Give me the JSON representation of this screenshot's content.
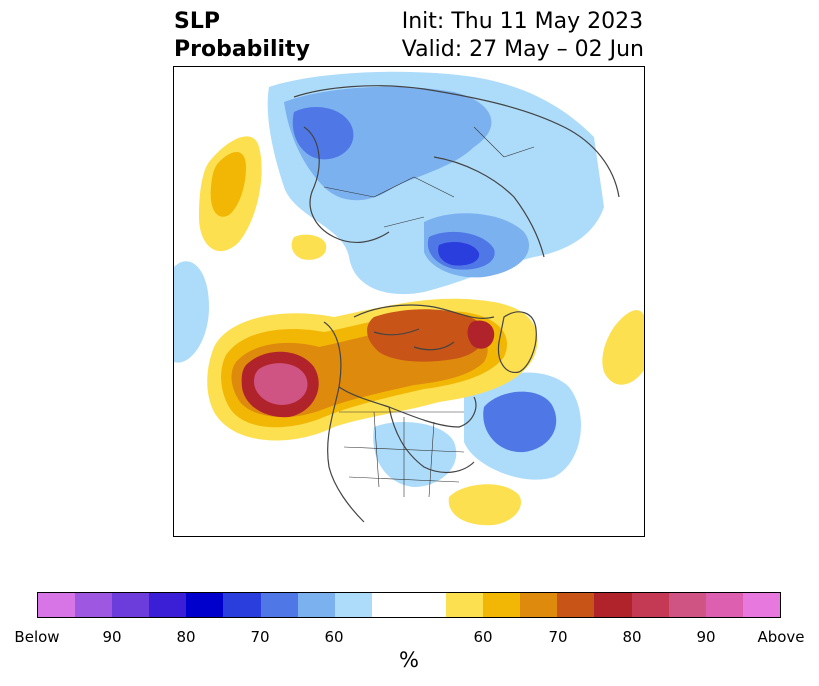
{
  "title": {
    "left_line1": "SLP",
    "left_line2": "Probability",
    "right_line1": "Init: Thu 11 May 2023",
    "right_line2": "Valid: 27 May – 02 Jun"
  },
  "colorbar": {
    "units": "%",
    "swatches": [
      {
        "color": "#d774e6"
      },
      {
        "color": "#9e57e0"
      },
      {
        "color": "#6d3ddb"
      },
      {
        "color": "#3a1fd7"
      },
      {
        "color": "#0000cc"
      },
      {
        "color": "#2a3ddd"
      },
      {
        "color": "#4f77e6"
      },
      {
        "color": "#7cb1f0"
      },
      {
        "color": "#addcfb"
      },
      {
        "color": "#ffffff",
        "wide": true
      },
      {
        "color": "#fde050"
      },
      {
        "color": "#f2b705"
      },
      {
        "color": "#de8a0d"
      },
      {
        "color": "#c85418"
      },
      {
        "color": "#b0232a"
      },
      {
        "color": "#c43a55"
      },
      {
        "color": "#cf5483"
      },
      {
        "color": "#dd5fb0"
      },
      {
        "color": "#e779de"
      }
    ],
    "tick_labels": [
      "Below",
      "90",
      "80",
      "70",
      "60",
      "60",
      "70",
      "80",
      "90",
      "Above"
    ]
  }
}
